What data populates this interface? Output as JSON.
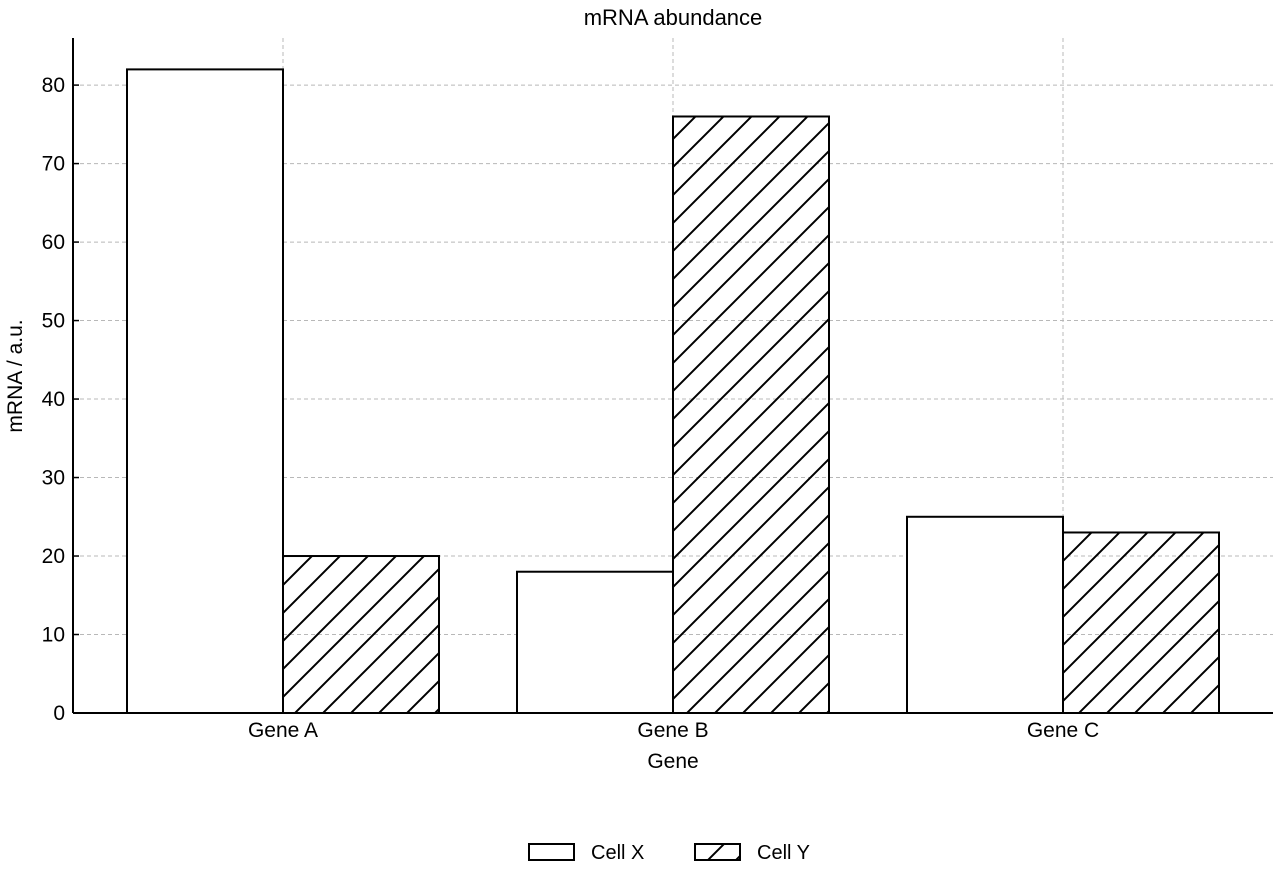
{
  "chart_data": {
    "type": "bar",
    "title": "mRNA abundance",
    "xlabel": "Gene",
    "ylabel": "mRNA / a.u.",
    "categories": [
      "Gene A",
      "Gene B",
      "Gene C"
    ],
    "series": [
      {
        "name": "Cell X",
        "values": [
          82,
          18,
          25
        ],
        "pattern": "none"
      },
      {
        "name": "Cell Y",
        "values": [
          20,
          76,
          23
        ],
        "pattern": "diagonal-hatch"
      }
    ],
    "ylim": [
      0,
      86
    ],
    "yticks": [
      0,
      10,
      20,
      30,
      40,
      50,
      60,
      70,
      80
    ],
    "grid": true,
    "legend_position": "bottom-center",
    "colors": {
      "bar_fill": "#ffffff",
      "edge": "#000000",
      "grid": "#b8b8b8"
    }
  }
}
